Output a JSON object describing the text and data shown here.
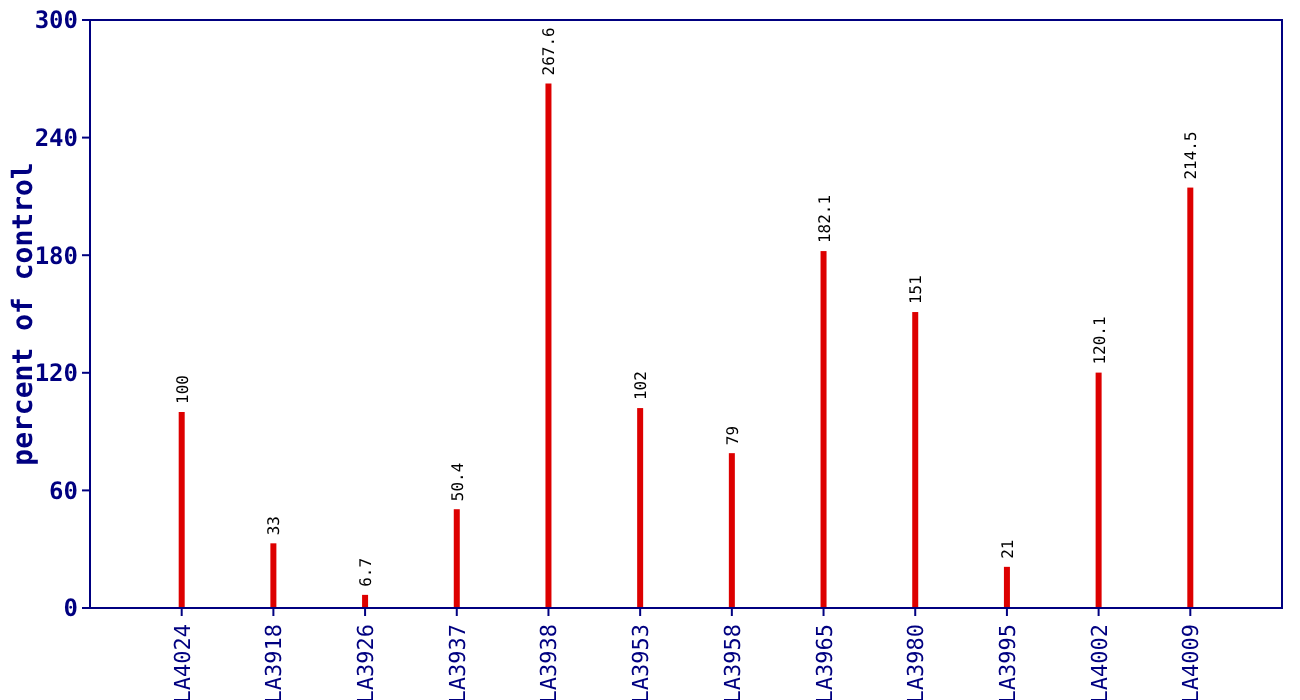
{
  "chart_data": {
    "type": "bar",
    "ylabel": "percent of control",
    "categories": [
      "LA4024",
      "LA3918",
      "LA3926",
      "LA3937",
      "LA3938",
      "LA3953",
      "LA3958",
      "LA3965",
      "LA3980",
      "LA3995",
      "LA4002",
      "LA4009"
    ],
    "values": [
      100,
      33,
      6.7,
      50.4,
      267.6,
      102,
      79,
      182.1,
      151,
      21,
      120.1,
      214.5
    ],
    "color": "#dd0000",
    "ylim": [
      0,
      300
    ],
    "yticks": [
      0,
      60,
      120,
      180,
      240,
      300
    ],
    "data_labels": true
  }
}
